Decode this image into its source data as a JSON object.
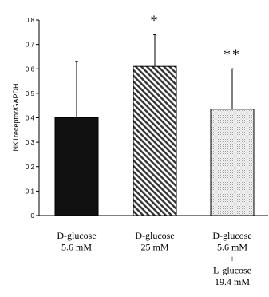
{
  "chart_data": {
    "type": "bar",
    "ylabel": "NK1receptor/GAPDH",
    "ylim": [
      0,
      0.8
    ],
    "yticks": [
      "0",
      "0.1",
      "0.2",
      "0.3",
      "0.4",
      "0.5",
      "0.6",
      "0.7",
      "0.8"
    ],
    "grid": false,
    "categories": [
      {
        "lines": [
          "D-glucose",
          "5.6 mM"
        ]
      },
      {
        "lines": [
          "D-glucose",
          "25 mM"
        ]
      },
      {
        "lines": [
          "D-glucose",
          "5.6 mM",
          "+",
          "L-glucose",
          "19.4 mM"
        ]
      }
    ],
    "values": [
      0.4,
      0.61,
      0.435
    ],
    "errors": [
      0.23,
      0.13,
      0.165
    ],
    "annotations": [
      "",
      "*",
      "**"
    ],
    "fills": [
      "solid-black",
      "diagonal-hatch",
      "dotted"
    ]
  }
}
